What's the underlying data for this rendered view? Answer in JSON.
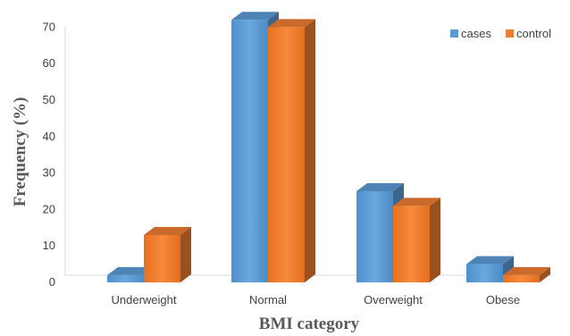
{
  "chart_data": {
    "type": "bar",
    "title": "",
    "xlabel": "BMI category",
    "ylabel": "Frequency (%)",
    "categories": [
      "Underweight",
      "Normal",
      "Overweight",
      "Obese"
    ],
    "ylim": [
      0,
      70
    ],
    "yticks": [
      0,
      10,
      20,
      30,
      40,
      50,
      60,
      70
    ],
    "grid": false,
    "legend_position": "top-right",
    "style": "3d-clustered-column",
    "series": [
      {
        "name": "cases",
        "color": "#5b9bd5",
        "values": [
          2,
          72,
          25,
          5
        ]
      },
      {
        "name": "control",
        "color": "#ed7d31",
        "values": [
          13,
          70,
          21,
          2
        ]
      }
    ]
  }
}
